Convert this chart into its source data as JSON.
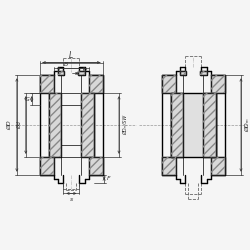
{
  "bg_color": "#f5f5f5",
  "line_color": "#000000",
  "dim_color": "#333333",
  "label_DW_SW": "ØDₘ/SW",
  "label_DW": "ØDₘ",
  "label_OD": "ØD",
  "label_Od": "Ød"
}
